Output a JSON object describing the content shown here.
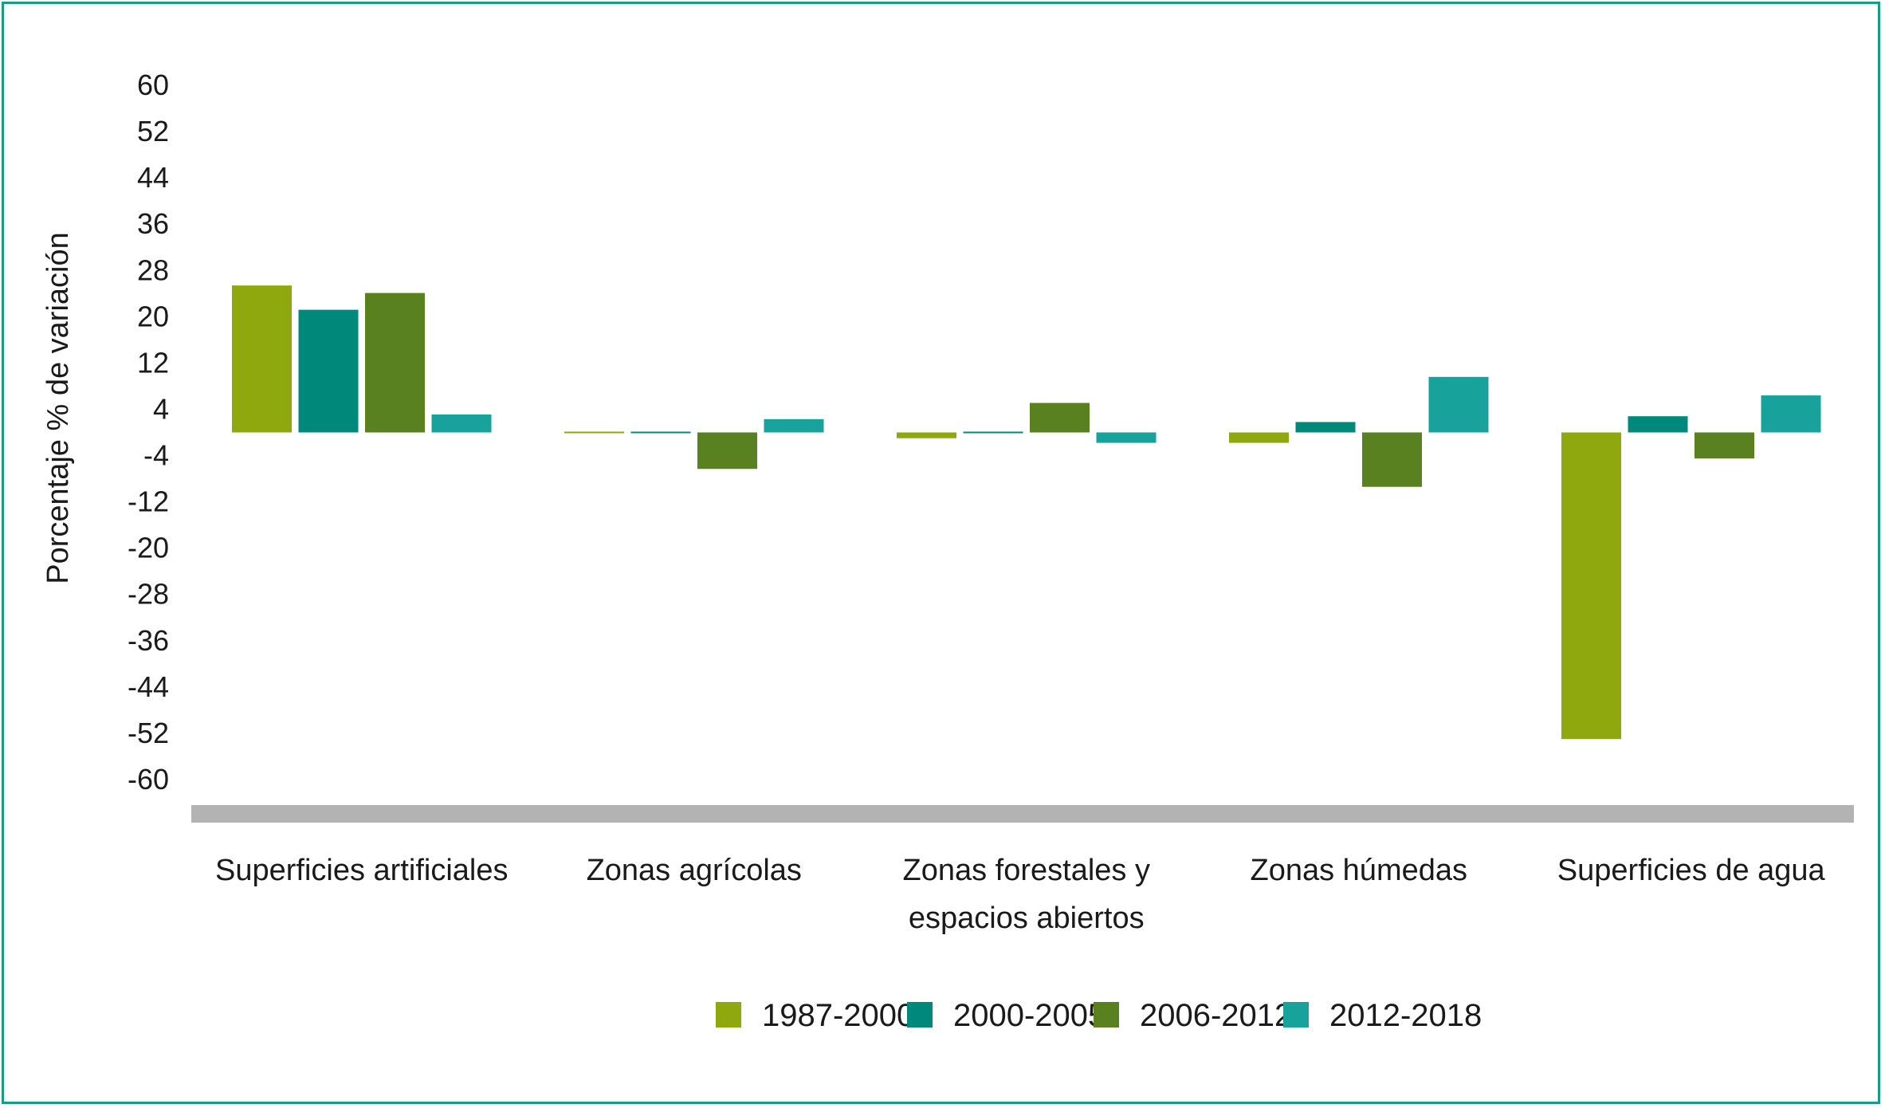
{
  "chart_data": {
    "type": "bar",
    "ylabel": "Porcentaje % de variación",
    "ylim": [
      -60,
      60
    ],
    "yticks": [
      60,
      52,
      44,
      36,
      28,
      20,
      12,
      4,
      -4,
      -12,
      -20,
      -28,
      -36,
      -44,
      -52,
      -60
    ],
    "categories": [
      [
        "Superficies artificiales"
      ],
      [
        "Zonas agrícolas"
      ],
      [
        "Zonas forestales y",
        "espacios abiertos"
      ],
      [
        "Zonas húmedas"
      ],
      [
        "Superficies de agua"
      ]
    ],
    "series": [
      {
        "name": "1987-2000",
        "color": "#8fa80d",
        "values": [
          25.4,
          0.2,
          -1.0,
          -1.8,
          -53.0
        ]
      },
      {
        "name": "2000-2005",
        "color": "#00897b",
        "values": [
          21.2,
          -0.2,
          0.2,
          1.8,
          2.8
        ]
      },
      {
        "name": "2006-2012",
        "color": "#5a811f",
        "values": [
          24.1,
          -6.3,
          5.1,
          -9.4,
          -4.5
        ]
      },
      {
        "name": "2012-2018",
        "color": "#17a39b",
        "values": [
          3.1,
          2.3,
          -1.8,
          9.6,
          6.4
        ]
      }
    ],
    "legend_position": "bottom",
    "grid": false
  }
}
